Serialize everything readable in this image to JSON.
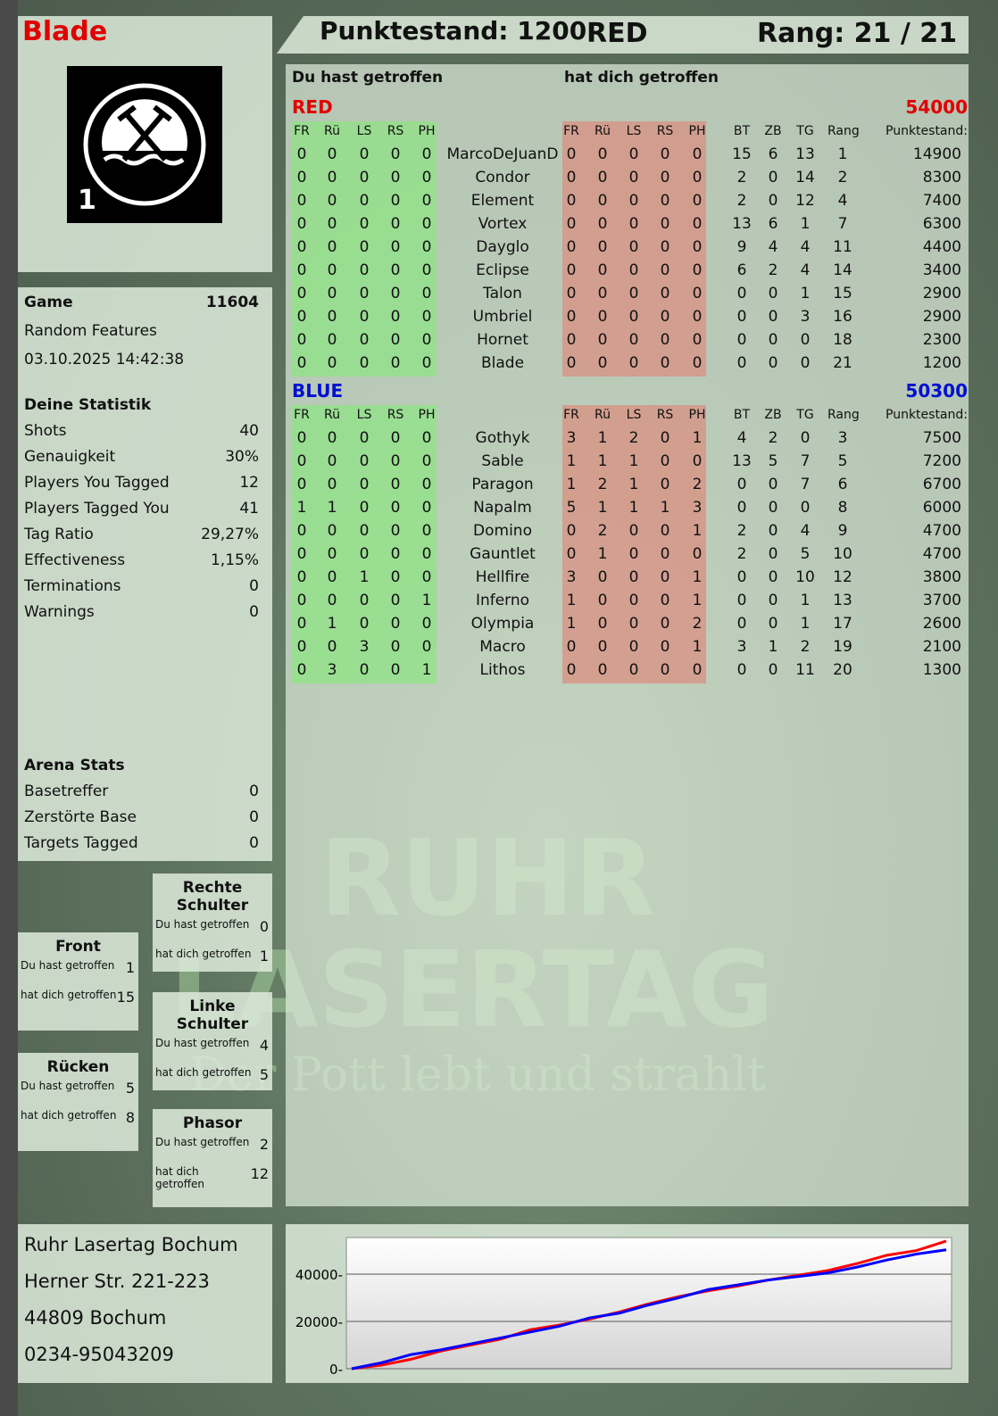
{
  "player": {
    "name": "Blade",
    "logo_text": "RUHR LASERTAG",
    "logo_number": "1"
  },
  "header": {
    "score_label": "Punktestand: 1200",
    "team": "RED",
    "rank_label": "Rang: 21 / 21"
  },
  "main": {
    "col_you_hit": "Du hast getroffen",
    "col_hit_you": "hat dich getroffen",
    "headers": [
      "FR",
      "Rü",
      "LS",
      "RS",
      "PH",
      "FR",
      "Rü",
      "LS",
      "RS",
      "PH",
      "BT",
      "ZB",
      "TG",
      "Rang",
      "Punktestand:"
    ],
    "teams": [
      {
        "name": "RED",
        "score": "54000",
        "color": "#e00000",
        "rows": [
          [
            "0",
            "0",
            "0",
            "0",
            "0",
            "MarcoDeJuanD",
            "0",
            "0",
            "0",
            "0",
            "0",
            "15",
            "6",
            "13",
            "1",
            "14900"
          ],
          [
            "0",
            "0",
            "0",
            "0",
            "0",
            "Condor",
            "0",
            "0",
            "0",
            "0",
            "0",
            "2",
            "0",
            "14",
            "2",
            "8300"
          ],
          [
            "0",
            "0",
            "0",
            "0",
            "0",
            "Element",
            "0",
            "0",
            "0",
            "0",
            "0",
            "2",
            "0",
            "12",
            "4",
            "7400"
          ],
          [
            "0",
            "0",
            "0",
            "0",
            "0",
            "Vortex",
            "0",
            "0",
            "0",
            "0",
            "0",
            "13",
            "6",
            "1",
            "7",
            "6300"
          ],
          [
            "0",
            "0",
            "0",
            "0",
            "0",
            "Dayglo",
            "0",
            "0",
            "0",
            "0",
            "0",
            "9",
            "4",
            "4",
            "11",
            "4400"
          ],
          [
            "0",
            "0",
            "0",
            "0",
            "0",
            "Eclipse",
            "0",
            "0",
            "0",
            "0",
            "0",
            "6",
            "2",
            "4",
            "14",
            "3400"
          ],
          [
            "0",
            "0",
            "0",
            "0",
            "0",
            "Talon",
            "0",
            "0",
            "0",
            "0",
            "0",
            "0",
            "0",
            "1",
            "15",
            "2900"
          ],
          [
            "0",
            "0",
            "0",
            "0",
            "0",
            "Umbriel",
            "0",
            "0",
            "0",
            "0",
            "0",
            "0",
            "0",
            "3",
            "16",
            "2900"
          ],
          [
            "0",
            "0",
            "0",
            "0",
            "0",
            "Hornet",
            "0",
            "0",
            "0",
            "0",
            "0",
            "0",
            "0",
            "0",
            "18",
            "2300"
          ],
          [
            "0",
            "0",
            "0",
            "0",
            "0",
            "Blade",
            "0",
            "0",
            "0",
            "0",
            "0",
            "0",
            "0",
            "0",
            "21",
            "1200"
          ]
        ]
      },
      {
        "name": "BLUE",
        "score": "50300",
        "color": "#0010d0",
        "rows": [
          [
            "0",
            "0",
            "0",
            "0",
            "0",
            "Gothyk",
            "3",
            "1",
            "2",
            "0",
            "1",
            "4",
            "2",
            "0",
            "3",
            "7500"
          ],
          [
            "0",
            "0",
            "0",
            "0",
            "0",
            "Sable",
            "1",
            "1",
            "1",
            "0",
            "0",
            "13",
            "5",
            "7",
            "5",
            "7200"
          ],
          [
            "0",
            "0",
            "0",
            "0",
            "0",
            "Paragon",
            "1",
            "2",
            "1",
            "0",
            "2",
            "0",
            "0",
            "7",
            "6",
            "6700"
          ],
          [
            "1",
            "1",
            "0",
            "0",
            "0",
            "Napalm",
            "5",
            "1",
            "1",
            "1",
            "3",
            "0",
            "0",
            "0",
            "8",
            "6000"
          ],
          [
            "0",
            "0",
            "0",
            "0",
            "0",
            "Domino",
            "0",
            "2",
            "0",
            "0",
            "1",
            "2",
            "0",
            "4",
            "9",
            "4700"
          ],
          [
            "0",
            "0",
            "0",
            "0",
            "0",
            "Gauntlet",
            "0",
            "1",
            "0",
            "0",
            "0",
            "2",
            "0",
            "5",
            "10",
            "4700"
          ],
          [
            "0",
            "0",
            "1",
            "0",
            "0",
            "Hellfire",
            "3",
            "0",
            "0",
            "0",
            "1",
            "0",
            "0",
            "10",
            "12",
            "3800"
          ],
          [
            "0",
            "0",
            "0",
            "0",
            "1",
            "Inferno",
            "1",
            "0",
            "0",
            "0",
            "1",
            "0",
            "0",
            "1",
            "13",
            "3700"
          ],
          [
            "0",
            "1",
            "0",
            "0",
            "0",
            "Olympia",
            "1",
            "0",
            "0",
            "0",
            "2",
            "0",
            "0",
            "1",
            "17",
            "2600"
          ],
          [
            "0",
            "0",
            "3",
            "0",
            "0",
            "Macro",
            "0",
            "0",
            "0",
            "0",
            "1",
            "3",
            "1",
            "2",
            "19",
            "2100"
          ],
          [
            "0",
            "3",
            "0",
            "0",
            "1",
            "Lithos",
            "0",
            "0",
            "0",
            "0",
            "0",
            "0",
            "0",
            "11",
            "20",
            "1300"
          ]
        ]
      }
    ]
  },
  "game": {
    "label": "Game",
    "id": "11604",
    "mode": "Random Features",
    "datetime": "03.10.2025 14:42:38"
  },
  "stats": {
    "title": "Deine Statistik",
    "items": [
      {
        "label": "Shots",
        "value": "40"
      },
      {
        "label": "Genauigkeit",
        "value": "30%"
      },
      {
        "label": "Players You Tagged",
        "value": "12"
      },
      {
        "label": "Players Tagged You",
        "value": "41"
      },
      {
        "label": "Tag Ratio",
        "value": "29,27%"
      },
      {
        "label": "Effectiveness",
        "value": "1,15%"
      },
      {
        "label": "Terminations",
        "value": "0"
      },
      {
        "label": "Warnings",
        "value": "0"
      }
    ]
  },
  "arena": {
    "title": "Arena Stats",
    "items": [
      {
        "label": "Basetreffer",
        "value": "0"
      },
      {
        "label": "Zerstörte Base",
        "value": "0"
      },
      {
        "label": "Targets Tagged",
        "value": "0"
      }
    ]
  },
  "zones": [
    {
      "name": "Rechte Schulter",
      "you_hit_label": "Du hast getroffen",
      "you_hit": "0",
      "hit_you_label": "hat dich getroffen",
      "hit_you": "1"
    },
    {
      "name": "Front",
      "you_hit_label": "Du hast getroffen",
      "you_hit": "1",
      "hit_you_label": "hat dich getroffen",
      "hit_you": "15"
    },
    {
      "name": "Linke Schulter",
      "you_hit_label": "Du hast getroffen",
      "you_hit": "4",
      "hit_you_label": "hat dich getroffen",
      "hit_you": "5"
    },
    {
      "name": "Rücken",
      "you_hit_label": "Du hast getroffen",
      "you_hit": "5",
      "hit_you_label": "hat dich getroffen",
      "hit_you": "8"
    },
    {
      "name": "Phasor",
      "you_hit_label": "Du hast getroffen",
      "you_hit": "2",
      "hit_you_label": "hat dich getroffen",
      "hit_you": "12"
    }
  ],
  "address": {
    "lines": [
      "Ruhr Lasertag Bochum",
      "Herner Str. 221-223",
      "44809 Bochum",
      "0234-95043209"
    ]
  },
  "watermark": {
    "line1": "RUHR",
    "line2": "LASERTAG",
    "tagline": "Der Pott lebt und strahlt"
  },
  "chart_data": {
    "type": "line",
    "ylim": [
      0,
      55500
    ],
    "yticks": [
      "0",
      "20000",
      "40000"
    ],
    "grid": true,
    "series": [
      {
        "color": "#ff0000",
        "values": [
          0,
          1500,
          4000,
          7500,
          10000,
          12500,
          16500,
          18500,
          21000,
          24000,
          27500,
          30500,
          33000,
          35000,
          37500,
          39500,
          41500,
          44500,
          48000,
          50000,
          54000
        ]
      },
      {
        "color": "#0000ff",
        "values": [
          0,
          2500,
          6000,
          8000,
          10500,
          13000,
          15500,
          18000,
          21500,
          23500,
          27000,
          30000,
          33500,
          35500,
          37500,
          39000,
          40500,
          43000,
          46000,
          48500,
          50300
        ]
      }
    ]
  }
}
